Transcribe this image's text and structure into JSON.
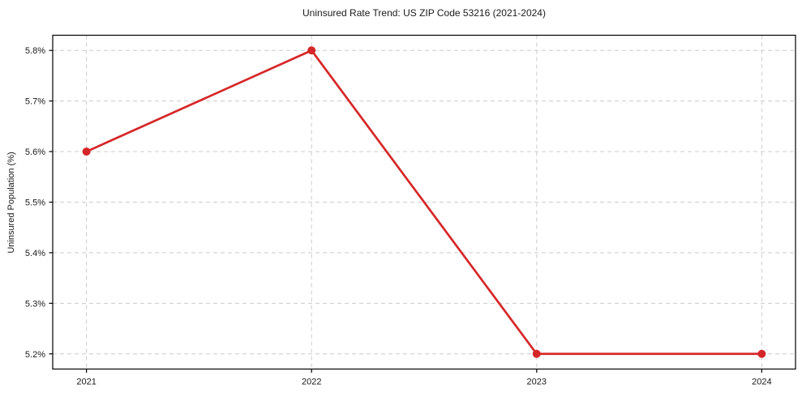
{
  "chart_data": {
    "type": "line",
    "title": "Uninsured Rate Trend: US ZIP Code 53216 (2021-2024)",
    "xlabel": "",
    "ylabel": "Uninsured Population (%)",
    "x": [
      2021,
      2022,
      2023,
      2024
    ],
    "x_tick_labels": [
      "2021",
      "2022",
      "2023",
      "2024"
    ],
    "series": [
      {
        "name": "Uninsured rate",
        "values": [
          5.6,
          5.8,
          5.2,
          5.2
        ],
        "color": "#d62728",
        "line_width": 2.7,
        "marker": "circle",
        "marker_radius": 5
      }
    ],
    "y_ticks": [
      5.2,
      5.3,
      5.4,
      5.5,
      5.6,
      5.7,
      5.8
    ],
    "y_tick_labels": [
      "5.2%",
      "5.3%",
      "5.4%",
      "5.5%",
      "5.6%",
      "5.7%",
      "5.8%"
    ],
    "xlim": [
      2020.85,
      2024.15
    ],
    "ylim": [
      5.17,
      5.83
    ],
    "grid": true,
    "grid_color": "#cccccc",
    "grid_dash": "5,4",
    "axes_color": "#000000",
    "background": "#ffffff",
    "legend": "none"
  }
}
